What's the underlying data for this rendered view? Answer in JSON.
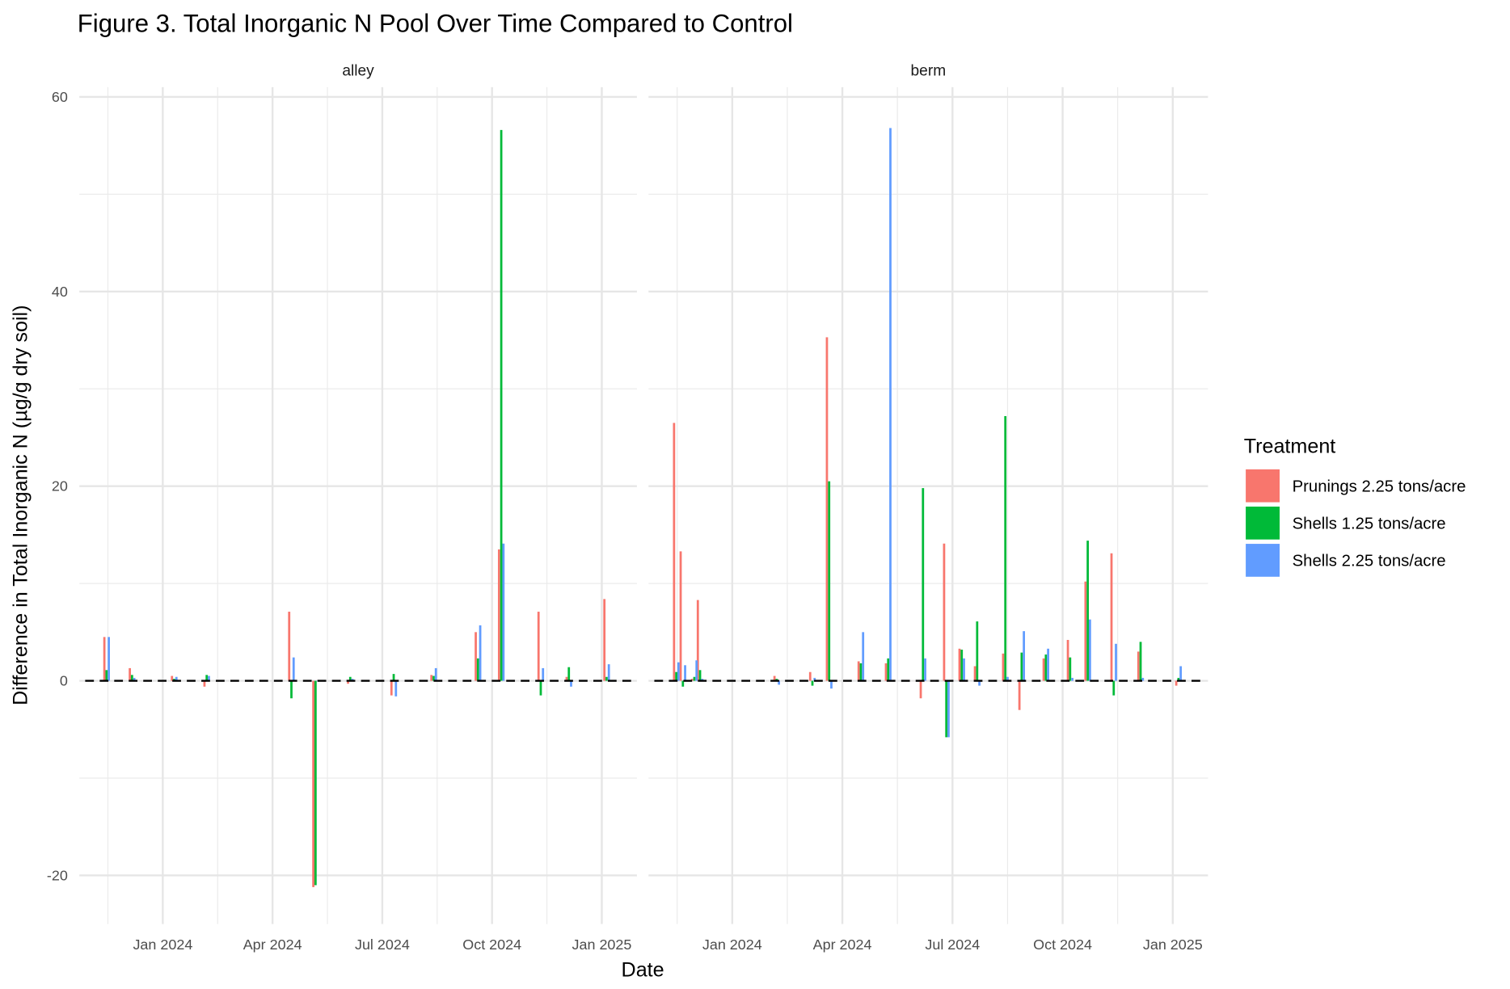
{
  "chart_data": {
    "type": "bar",
    "title": "Figure 3. Total Inorganic N Pool Over Time Compared to Control",
    "x_label": "Date",
    "y_label": "Difference in Total Inorganic N (µg/g dry soil)",
    "legend_title": "Treatment",
    "legend": "right",
    "grid": true,
    "reference_line": 0,
    "xlim": [
      2023.81,
      2025.08
    ],
    "xticks": [
      {
        "value": 2024,
        "label": "Jan 2024"
      },
      {
        "value": 2024.25,
        "label": "Apr 2024"
      },
      {
        "value": 2024.5,
        "label": "Jul 2024"
      },
      {
        "value": 2024.75,
        "label": "Oct 2024"
      },
      {
        "value": 2025,
        "label": "Jan 2025"
      }
    ],
    "ylim": [
      -25,
      61
    ],
    "yticks": [
      -20,
      0,
      20,
      40,
      60
    ],
    "facets": [
      {
        "name": "alley",
        "x": [
          2023.872,
          2023.93,
          2024.026,
          2024.1,
          2024.293,
          2024.348,
          2024.427,
          2024.526,
          2024.617,
          2024.718,
          2024.771,
          2024.861,
          2024.925,
          2025.011
        ],
        "series": [
          {
            "name": "Prunings 2.25 tons/acre",
            "color": "#F8766D",
            "values": [
              4.5,
              1.3,
              0.5,
              -0.6,
              7.1,
              -21.2,
              -0.3,
              -1.5,
              0.6,
              5.0,
              13.5,
              7.1,
              0.4,
              8.4
            ]
          },
          {
            "name": "Shells 1.25 tons/acre",
            "color": "#00BA38",
            "values": [
              1.1,
              0.6,
              0.2,
              0.6,
              -1.8,
              -21.0,
              0.4,
              0.7,
              0.5,
              2.3,
              56.6,
              -1.5,
              1.4,
              0.4
            ]
          },
          {
            "name": "Shells 2.25 tons/acre",
            "color": "#619CFF",
            "values": [
              4.5,
              0.3,
              0.4,
              0.5,
              2.4,
              0,
              0.2,
              -1.6,
              1.3,
              5.7,
              14.1,
              1.3,
              -0.6,
              1.7
            ]
          }
        ]
      },
      {
        "name": "berm",
        "x": [
          2023.873,
          2023.888,
          2023.914,
          2023.927,
          2024.101,
          2024.182,
          2024.22,
          2024.292,
          2024.354,
          2024.433,
          2024.486,
          2024.521,
          2024.556,
          2024.62,
          2024.657,
          2024.712,
          2024.767,
          2024.807,
          2024.866,
          2024.927,
          2025.013
        ],
        "series": [
          {
            "name": "Prunings 2.25 tons/acre",
            "color": "#F8766D",
            "values": [
              26.5,
              13.3,
              0.2,
              8.3,
              0.5,
              0.9,
              35.3,
              2.0,
              1.8,
              -1.8,
              14.1,
              3.3,
              1.5,
              2.8,
              -3.0,
              2.3,
              4.2,
              10.2,
              13.1,
              3.0,
              -0.5
            ]
          },
          {
            "name": "Shells 1.25 tons/acre",
            "color": "#00BA38",
            "values": [
              0.9,
              -0.6,
              0.4,
              1.1,
              0.2,
              -0.5,
              20.5,
              1.8,
              2.3,
              19.8,
              -5.8,
              3.2,
              6.1,
              27.2,
              2.9,
              2.7,
              2.4,
              14.4,
              -1.5,
              4.0,
              0.3
            ]
          },
          {
            "name": "Shells 2.25 tons/acre",
            "color": "#619CFF",
            "values": [
              1.9,
              1.6,
              2.1,
              0.2,
              -0.4,
              0.3,
              -0.8,
              5.0,
              56.8,
              2.3,
              -5.8,
              2.3,
              -0.5,
              0.4,
              5.1,
              3.3,
              0.3,
              6.3,
              3.8,
              0.3,
              1.5
            ]
          }
        ]
      }
    ]
  }
}
